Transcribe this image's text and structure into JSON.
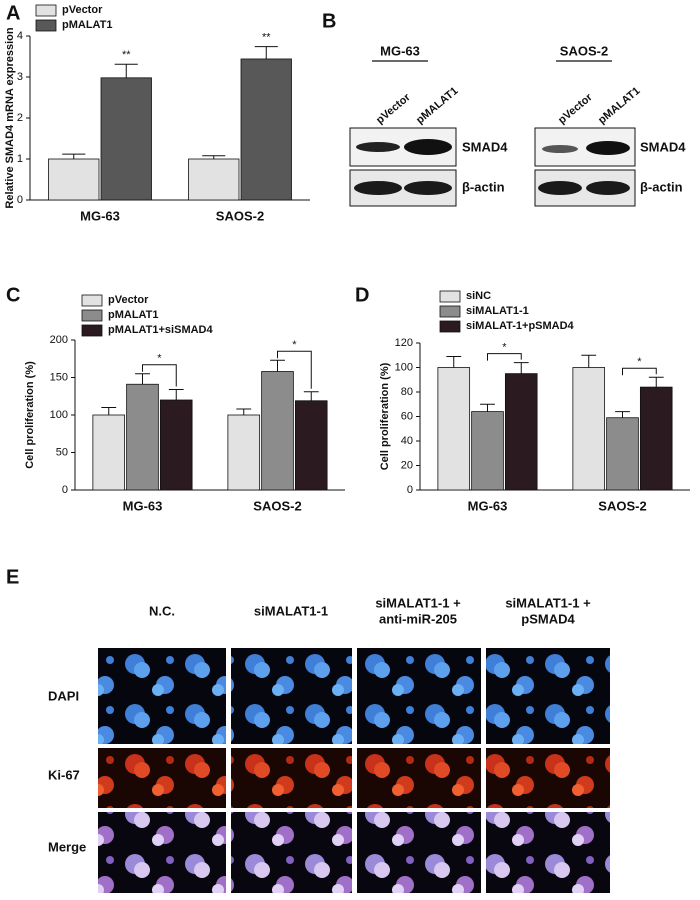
{
  "chart_data": [
    {
      "type": "bar",
      "panel_label": "A",
      "ylabel": "Relative SMAD4 mRNA expression",
      "categories": [
        "MG-63",
        "SAOS-2"
      ],
      "series": [
        {
          "name": "pVector",
          "color": "#e2e2e2",
          "values": [
            1.0,
            1.0
          ],
          "errors": [
            0.12,
            0.08
          ]
        },
        {
          "name": "pMALAT1",
          "color": "#585858",
          "values": [
            2.98,
            3.44
          ],
          "errors": [
            0.33,
            0.3
          ]
        }
      ],
      "significance_labels": [
        "**",
        "**"
      ],
      "ylim": [
        0,
        4
      ],
      "yticks": [
        0,
        1,
        2,
        3,
        4
      ]
    },
    {
      "type": "bar",
      "panel_label": "C",
      "ylabel": "Cell proliferation (%)",
      "categories": [
        "MG-63",
        "SAOS-2"
      ],
      "series": [
        {
          "name": "pVector",
          "color": "#e2e2e2",
          "values": [
            100,
            100
          ],
          "errors": [
            10,
            8
          ]
        },
        {
          "name": "pMALAT1",
          "color": "#8c8c8c",
          "values": [
            141,
            158
          ],
          "errors": [
            14,
            15
          ]
        },
        {
          "name": "pMALAT1+siSMAD4",
          "color": "#2b1a1f",
          "values": [
            120,
            119
          ],
          "errors": [
            14,
            12
          ]
        }
      ],
      "significance_labels": [
        "*",
        "*"
      ],
      "ylim": [
        0,
        200
      ],
      "yticks": [
        0,
        50,
        100,
        150,
        200
      ]
    },
    {
      "type": "bar",
      "panel_label": "D",
      "ylabel": "Cell proliferation (%)",
      "categories": [
        "MG-63",
        "SAOS-2"
      ],
      "series": [
        {
          "name": "siNC",
          "color": "#e2e2e2",
          "values": [
            100,
            100
          ],
          "errors": [
            9,
            10
          ]
        },
        {
          "name": "siMALAT1-1",
          "color": "#8c8c8c",
          "values": [
            64,
            59
          ],
          "errors": [
            6,
            5
          ]
        },
        {
          "name": "siMALAT-1+pSMAD4",
          "color": "#2b1a1f",
          "values": [
            95,
            84
          ],
          "errors": [
            9,
            8
          ]
        }
      ],
      "significance_labels": [
        "*",
        "*"
      ],
      "ylim": [
        0,
        120
      ],
      "yticks": [
        0,
        20,
        40,
        60,
        80,
        100,
        120
      ]
    }
  ],
  "blot": {
    "panel_label": "B",
    "groups": [
      {
        "name": "MG-63",
        "lanes": [
          "pVector",
          "pMALAT1"
        ]
      },
      {
        "name": "SAOS-2",
        "lanes": [
          "pVector",
          "pMALAT1"
        ]
      }
    ],
    "proteins": [
      "SMAD4",
      "β-actin"
    ]
  },
  "images": {
    "panel_label": "E",
    "columns": [
      [
        "N.C."
      ],
      [
        "siMALAT1-1"
      ],
      [
        "siMALAT1-1 +",
        "anti-miR-205"
      ],
      [
        "siMALAT1-1 +",
        "pSMAD4"
      ]
    ],
    "rows": [
      "DAPI",
      "Ki-67",
      "Merge"
    ]
  }
}
